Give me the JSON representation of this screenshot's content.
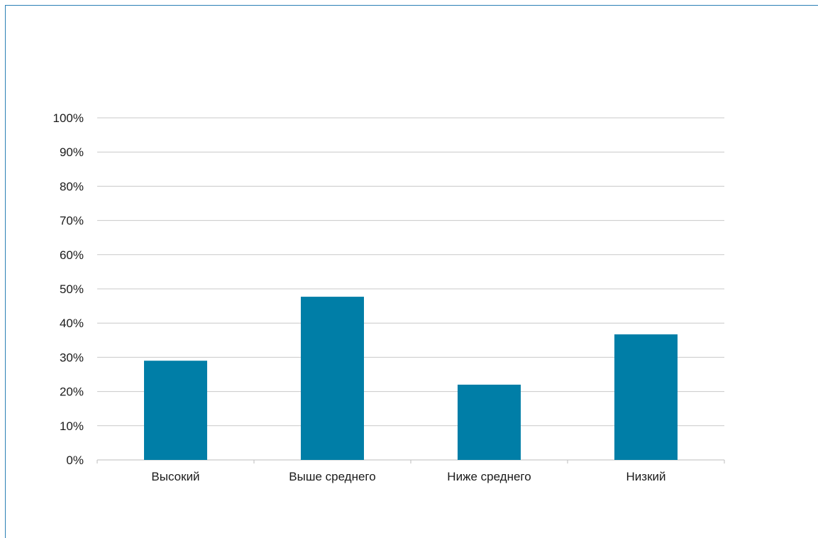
{
  "colors": {
    "bar": "#007ea7",
    "grid": "#c8c8c8",
    "frame": "#2a7fb5",
    "text": "#1a1a1a"
  },
  "chart_data": {
    "type": "bar",
    "title": "",
    "xlabel": "",
    "ylabel": "",
    "categories": [
      "Высокий",
      "Выше среднего",
      "Ниже среднего",
      "Низкий"
    ],
    "values": [
      29,
      47.7,
      22,
      36.7
    ],
    "ylim": [
      0,
      100
    ],
    "yticks": [
      "0%",
      "10%",
      "20%",
      "30%",
      "40%",
      "50%",
      "60%",
      "70%",
      "80%",
      "90%",
      "100%"
    ],
    "grid": true,
    "legend": "none"
  }
}
